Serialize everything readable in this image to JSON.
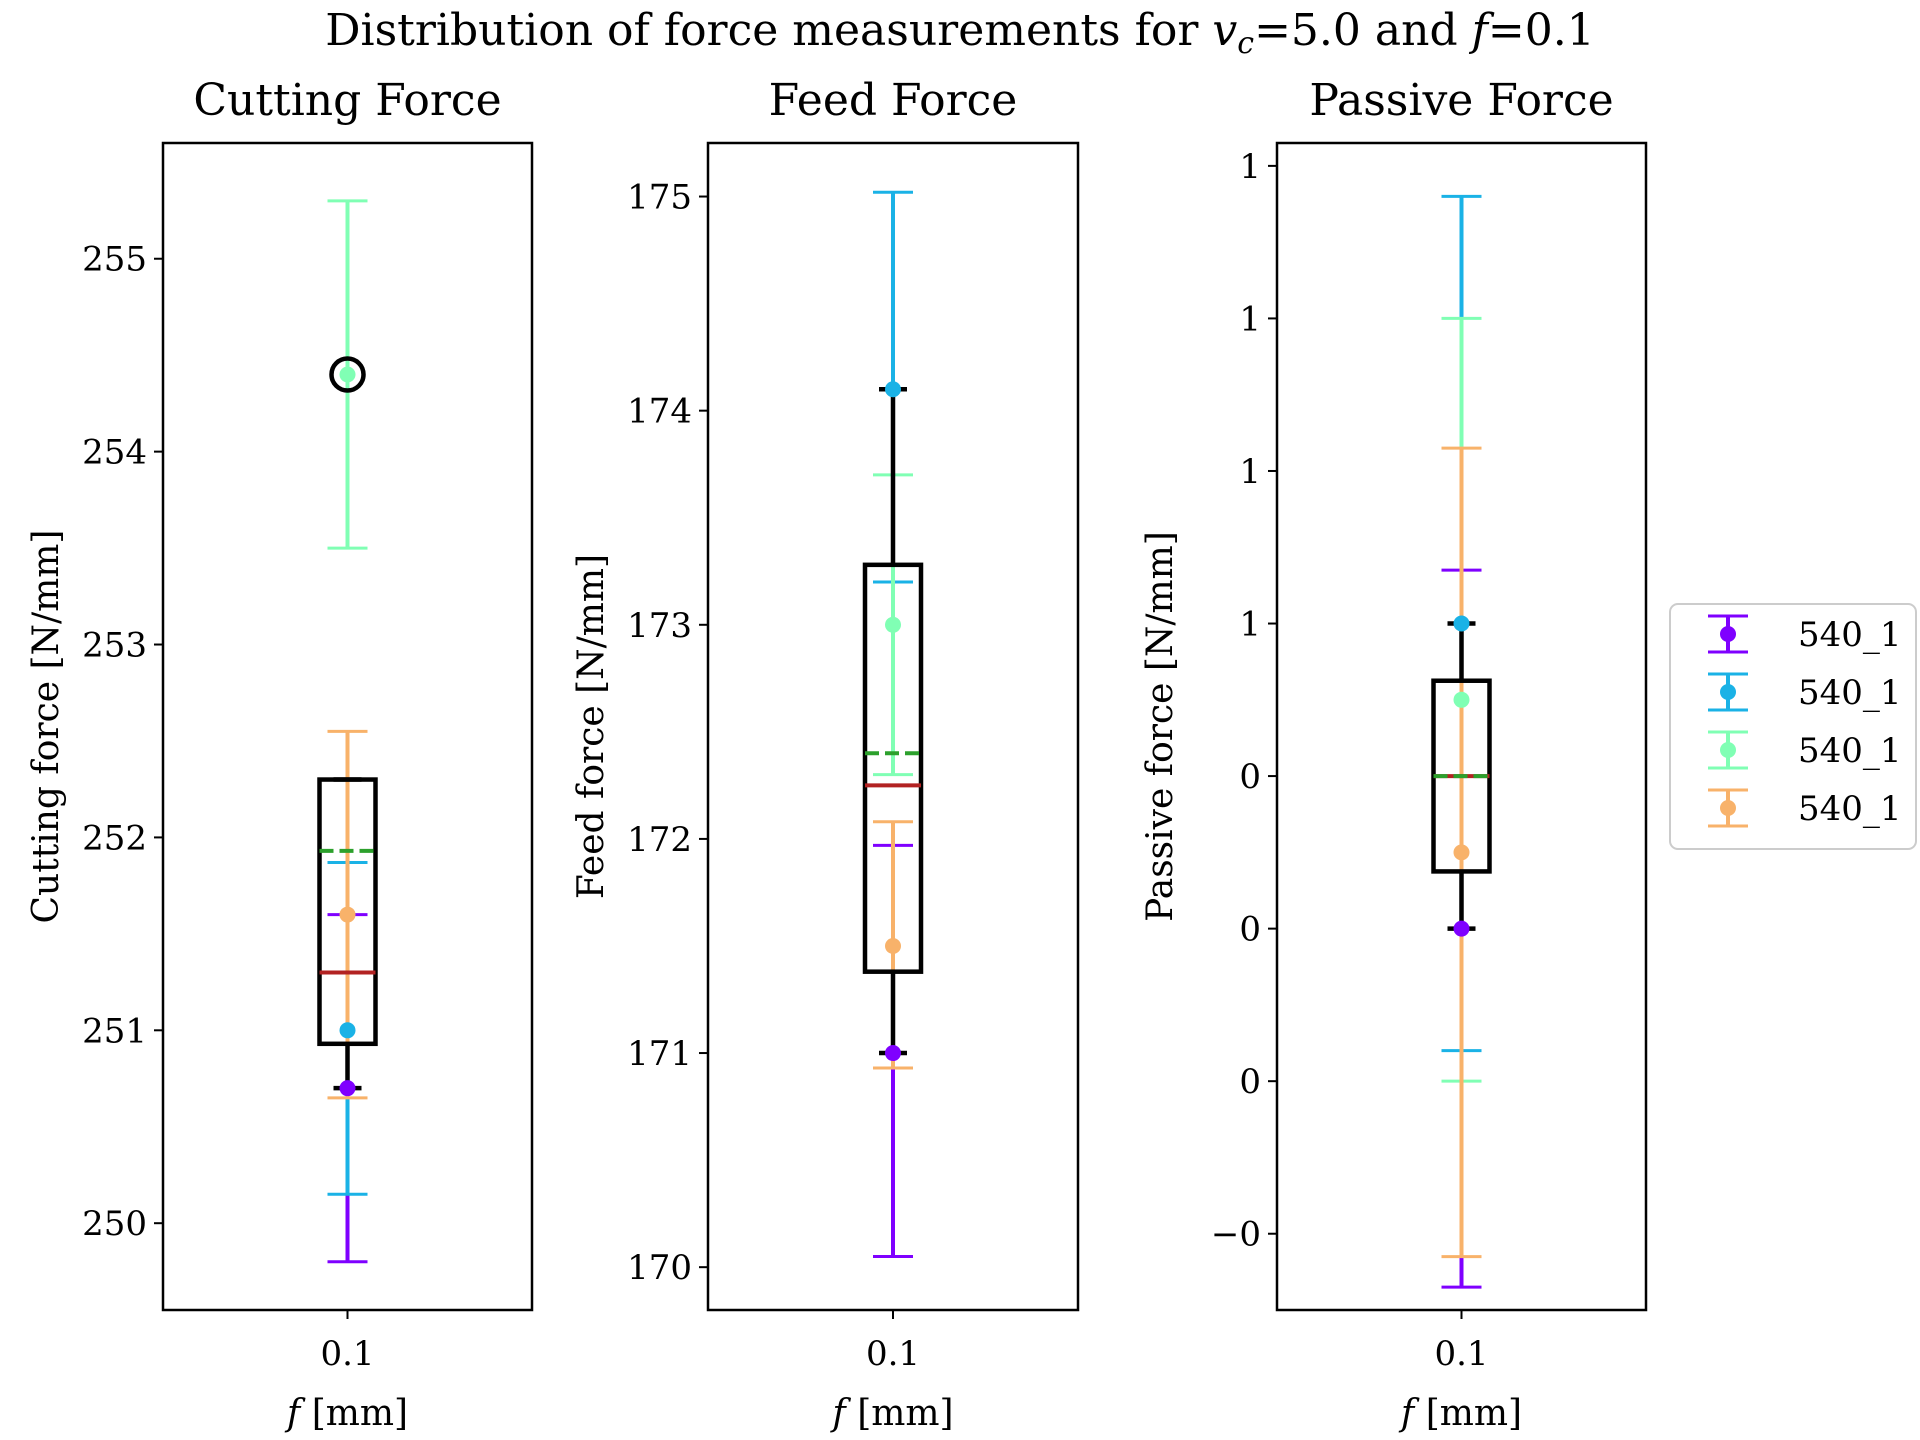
{
  "title": {
    "prefix": "Distribution of force measurements for ",
    "var1": "v",
    "var1_sub": "c",
    "mid": "=5.0 and ",
    "var2": "f",
    "suffix": "=0.1"
  },
  "legend": {
    "entries": [
      {
        "label": "540_1",
        "color": "#7f00ff"
      },
      {
        "label": "540_1",
        "color": "#1ab2e6"
      },
      {
        "label": "540_1",
        "color": "#80ffb4"
      },
      {
        "label": "540_1",
        "color": "#f8b26a"
      }
    ]
  },
  "colors": {
    "box": "#000000",
    "median": "#b22222",
    "mean": "#2ca02c"
  },
  "chart_data": [
    {
      "type": "errorbar-box",
      "title": "Cutting Force",
      "ylabel": "Cutting force [N/mm]",
      "xlabel_var": "f",
      "xlabel_unit": " [mm]",
      "category": "0.1",
      "ylim": [
        249.55,
        255.6
      ],
      "yticks": [
        250,
        251,
        252,
        253,
        254,
        255
      ],
      "series": [
        {
          "y": 250.7,
          "lo": 249.8,
          "hi": 251.6
        },
        {
          "y": 251.0,
          "lo": 250.15,
          "hi": 251.87
        },
        {
          "y": 254.4,
          "lo": 253.5,
          "hi": 255.3
        },
        {
          "y": 251.6,
          "lo": 250.65,
          "hi": 252.55
        }
      ],
      "box": {
        "q1": 250.93,
        "q3": 252.3,
        "median": 251.3,
        "mean": 251.93,
        "whisker_low": 250.7,
        "whisker_high": 252.3
      },
      "outliers": [
        254.4
      ]
    },
    {
      "type": "errorbar-box",
      "title": "Feed Force",
      "ylabel": "Feed force [N/mm]",
      "xlabel_var": "f",
      "xlabel_unit": " [mm]",
      "category": "0.1",
      "ylim": [
        169.8,
        175.25
      ],
      "yticks": [
        170,
        171,
        172,
        173,
        174,
        175
      ],
      "series": [
        {
          "y": 171.0,
          "lo": 170.05,
          "hi": 171.97
        },
        {
          "y": 174.1,
          "lo": 173.2,
          "hi": 175.02
        },
        {
          "y": 173.0,
          "lo": 172.3,
          "hi": 173.7
        },
        {
          "y": 171.5,
          "lo": 170.93,
          "hi": 172.08
        }
      ],
      "box": {
        "q1": 171.38,
        "q3": 173.28,
        "median": 172.25,
        "mean": 172.4,
        "whisker_low": 171.0,
        "whisker_high": 174.1
      },
      "outliers": []
    },
    {
      "type": "errorbar-box",
      "title": "Passive Force",
      "ylabel": "Passive force [N/mm]",
      "xlabel_var": "f",
      "xlabel_unit": " [mm]",
      "category": "0.1",
      "ylim": [
        -0.3,
        1.23
      ],
      "yticks": [
        -0.2,
        0.0,
        0.2,
        0.4,
        0.6,
        0.8,
        1.0,
        1.2
      ],
      "series": [
        {
          "y": 0.2,
          "lo": -0.27,
          "hi": 0.67
        },
        {
          "y": 0.6,
          "lo": 0.04,
          "hi": 1.16
        },
        {
          "y": 0.5,
          "lo": 0.0,
          "hi": 1.0
        },
        {
          "y": 0.3,
          "lo": -0.23,
          "hi": 0.83
        }
      ],
      "box": {
        "q1": 0.275,
        "q3": 0.525,
        "median": 0.4,
        "mean": 0.4,
        "whisker_low": 0.2,
        "whisker_high": 0.6
      },
      "outliers": []
    }
  ]
}
